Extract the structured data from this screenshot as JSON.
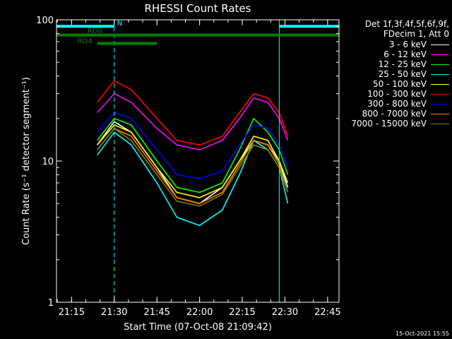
{
  "chart_data": {
    "type": "line",
    "title": "RHESSI Count Rates",
    "xlabel": "Start Time (07-Oct-08 21:09:42)",
    "ylabel": "Count Rate (s⁻¹ detector segment⁻¹)",
    "yscale": "log",
    "ylim": [
      1,
      100
    ],
    "xlim": [
      "21:09:42",
      "22:49"
    ],
    "x_ticks": [
      "21:15",
      "21:30",
      "21:45",
      "22:00",
      "22:15",
      "22:30",
      "22:45"
    ],
    "y_ticks": [
      "1",
      "10",
      "100"
    ],
    "grid": false,
    "legend_position": "top-right",
    "legend_header": [
      "Det 1f,3f,4f,5f,6f,9f,",
      "FDecim 1, Att 0"
    ],
    "x": [
      "21:24",
      "21:30",
      "21:36",
      "21:45",
      "21:52",
      "22:00",
      "22:08",
      "22:14",
      "22:19",
      "22:24",
      "22:28",
      "22:31"
    ],
    "series": [
      {
        "name": "3 - 6 keV",
        "color": "#ffffff",
        "values": [
          13,
          19,
          16,
          9,
          5.5,
          5.0,
          6.5,
          10,
          14,
          13,
          10,
          6.5
        ]
      },
      {
        "name": "6 - 12 keV",
        "color": "#ff00ff",
        "values": [
          22,
          30,
          26,
          17,
          13,
          12,
          14,
          20,
          28,
          26,
          20,
          14
        ]
      },
      {
        "name": "12 - 25 keV",
        "color": "#00ff00",
        "values": [
          14,
          20,
          18,
          10,
          6.5,
          6.0,
          7.0,
          12,
          20,
          16,
          12,
          8
        ]
      },
      {
        "name": "25 - 50 keV",
        "color": "#00ffff",
        "values": [
          11,
          16,
          13,
          7,
          4.0,
          3.5,
          4.5,
          8,
          14,
          12,
          9,
          5
        ]
      },
      {
        "name": "50 - 100 keV",
        "color": "#ffff00",
        "values": [
          13,
          18,
          16,
          9,
          6.0,
          5.5,
          6.5,
          10,
          15,
          14,
          10,
          7
        ]
      },
      {
        "name": "100 - 300 keV",
        "color": "#ff0000",
        "values": [
          26,
          37,
          32,
          20,
          14,
          13,
          15,
          22,
          30,
          28,
          22,
          15
        ]
      },
      {
        "name": "300 - 800 keV",
        "color": "#0000ff",
        "values": [
          16,
          22,
          20,
          12,
          8.0,
          7.5,
          8.5,
          13,
          18,
          17,
          13,
          9
        ]
      },
      {
        "name": "800 - 7000 keV",
        "color": "#ff8000",
        "values": [
          12,
          17,
          15,
          8.5,
          5.5,
          5.0,
          6.0,
          9.5,
          14,
          13,
          9.5,
          6
        ]
      },
      {
        "name": "7000 - 15000 keV",
        "color": "#808000",
        "values": [
          12,
          17,
          14,
          8,
          5.2,
          4.8,
          5.8,
          9,
          13,
          12,
          9,
          6
        ]
      }
    ],
    "attenuator_bars": [
      {
        "label": "N",
        "color": "#00ffff",
        "start": "21:09:42",
        "end": "21:30",
        "y": 90
      },
      {
        "label": "",
        "color": "#00ffff",
        "start": "22:28",
        "end": "22:49",
        "y": 90
      },
      {
        "label": "RD0",
        "color": "#008000",
        "start": "21:09:42",
        "end": "21:45",
        "y": 78
      },
      {
        "label": "",
        "color": "#008000",
        "start": "21:45",
        "end": "22:49",
        "y": 78
      },
      {
        "label": "RD4",
        "color": "#008000",
        "start": "21:24",
        "end": "21:45",
        "y": 68
      }
    ],
    "vertical_markers": [
      {
        "time": "21:09:42",
        "color": "#00ffff",
        "style": "solid"
      },
      {
        "time": "21:30",
        "color": "#00ffff",
        "style": "dashed"
      },
      {
        "time": "22:28",
        "color": "#00ffff",
        "style": "solid"
      },
      {
        "time": "22:49",
        "color": "#00ffff",
        "style": "dashed"
      }
    ]
  },
  "footer": {
    "timestamp": "15-Oct-2021 15:55"
  }
}
